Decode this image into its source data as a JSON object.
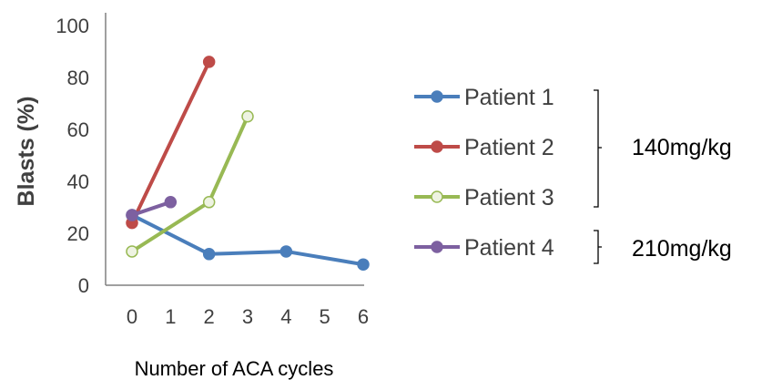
{
  "chart_data": {
    "type": "line",
    "title": "",
    "xlabel": "Number of ACA cycles",
    "ylabel": "Blasts (%)",
    "xlim": [
      0,
      6
    ],
    "ylim": [
      0,
      100
    ],
    "x_ticks": [
      "0",
      "1",
      "2",
      "3",
      "4",
      "5",
      "6"
    ],
    "y_ticks": [
      "0",
      "20",
      "40",
      "60",
      "80",
      "100"
    ],
    "grid": false,
    "legend_position": "right",
    "series": [
      {
        "name": "Patient 1",
        "color": "#4a7ebb",
        "marker": "filled",
        "x": [
          0,
          2,
          4,
          6
        ],
        "y": [
          27,
          12,
          13,
          8
        ]
      },
      {
        "name": "Patient 2",
        "color": "#be4b48",
        "marker": "filled",
        "x": [
          0,
          2
        ],
        "y": [
          24,
          86
        ]
      },
      {
        "name": "Patient 3",
        "color": "#98b954",
        "marker": "hollow",
        "x": [
          0,
          2,
          3
        ],
        "y": [
          13,
          32,
          65
        ]
      },
      {
        "name": "Patient 4",
        "color": "#7d60a0",
        "marker": "filled",
        "x": [
          0,
          1
        ],
        "y": [
          27,
          32
        ]
      }
    ],
    "dose_groups": [
      {
        "label": "140mg/kg",
        "series": [
          "Patient 1",
          "Patient 2",
          "Patient 3"
        ]
      },
      {
        "label": "210mg/kg",
        "series": [
          "Patient 4"
        ]
      }
    ]
  }
}
